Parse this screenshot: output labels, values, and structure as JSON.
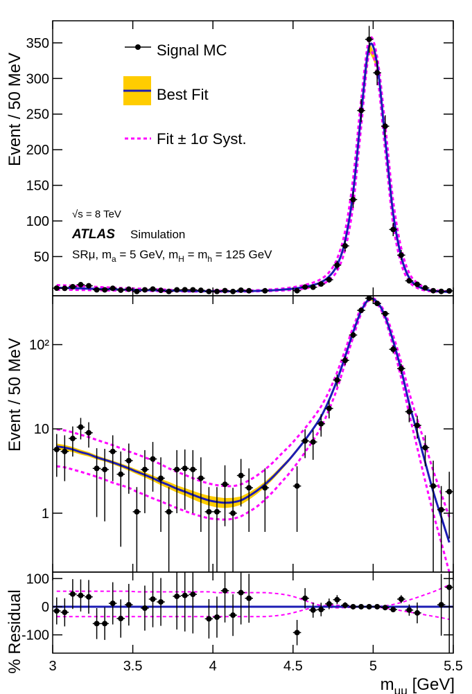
{
  "chart_data": [
    {
      "type": "errorbar",
      "log": false,
      "ylabel": "Event / 50 MeV",
      "ylim": [
        -5,
        381
      ],
      "yticks": [
        50,
        100,
        150,
        200,
        250,
        300,
        350
      ],
      "x": [
        3.025,
        3.075,
        3.125,
        3.175,
        3.225,
        3.275,
        3.325,
        3.375,
        3.425,
        3.475,
        3.525,
        3.575,
        3.625,
        3.675,
        3.725,
        3.775,
        3.825,
        3.875,
        3.925,
        3.975,
        4.025,
        4.075,
        4.125,
        4.175,
        4.225,
        4.275,
        4.325,
        4.375,
        4.425,
        4.475,
        4.525,
        4.575,
        4.625,
        4.675,
        4.725,
        4.775,
        4.825,
        4.875,
        4.925,
        4.975,
        5.025,
        5.075,
        5.125,
        5.175,
        5.225,
        5.275,
        5.325,
        5.375,
        5.425,
        5.475
      ],
      "xerr": 0.025,
      "series": [
        {
          "name": "Signal MC",
          "color": "#000000",
          "values": [
            5.7,
            5.4,
            7.7,
            10.5,
            9.0,
            3.4,
            3.3,
            5.4,
            2.9,
            4.2,
            1.04,
            3.3,
            4.4,
            2.6,
            1.04,
            3.3,
            3.4,
            3.3,
            2.6,
            1.04,
            1.04,
            2.2,
            1.0,
            2.8,
            2.0,
            null,
            2.0,
            null,
            null,
            null,
            2.1,
            7.2,
            7.0,
            11.5,
            17.5,
            38,
            65,
            130,
            255,
            355,
            308,
            233,
            88,
            52,
            16,
            11,
            6,
            2.1,
            1.1,
            1.8
          ],
          "errors": [
            3,
            3,
            3,
            3,
            3,
            2.5,
            2.5,
            3,
            2.5,
            2.5,
            1,
            2.3,
            2.6,
            2,
            1,
            2.3,
            2.3,
            2.3,
            2,
            1,
            1,
            1.5,
            1,
            1.6,
            1.4,
            null,
            1.4,
            null,
            null,
            null,
            1.5,
            2.7,
            2.7,
            3.4,
            4.2,
            6.2,
            8,
            11.4,
            16,
            18.8,
            17.5,
            15.3,
            9.4,
            7.2,
            4,
            3.3,
            2.4,
            2.1,
            1,
            1.3
          ]
        },
        {
          "name": "Best Fit",
          "color": "#1c1cb4",
          "band_color": "#ffcc00",
          "values": [
            6.2,
            6.0,
            5.7,
            5.3,
            5.0,
            4.6,
            4.3,
            4.0,
            3.7,
            3.4,
            3.1,
            2.85,
            2.6,
            2.35,
            2.15,
            1.95,
            1.8,
            1.65,
            1.52,
            1.42,
            1.36,
            1.33,
            1.35,
            1.42,
            1.6,
            1.85,
            2.2,
            2.7,
            3.4,
            4.3,
            5.6,
            7.4,
            10,
            14,
            22,
            38,
            72,
            140,
            250,
            345,
            320,
            215,
            110,
            50,
            20,
            9,
            4,
            1.8,
            0.9,
            0.45
          ],
          "lower": [
            5.7,
            5.55,
            5.3,
            4.95,
            4.7,
            4.35,
            4.1,
            3.8,
            3.5,
            3.2,
            2.9,
            2.65,
            2.4,
            2.15,
            1.95,
            1.76,
            1.61,
            1.46,
            1.33,
            1.23,
            1.17,
            1.15,
            1.18,
            1.26,
            1.44,
            1.69,
            2.03,
            2.52,
            3.2,
            4.1,
            5.35,
            7.1,
            9.6,
            13.5,
            21.3,
            37,
            70,
            137,
            245,
            338,
            314,
            211,
            108,
            49,
            19.6,
            8.8,
            3.9,
            1.76,
            0.88,
            0.44
          ],
          "upper": [
            6.7,
            6.45,
            6.1,
            5.65,
            5.3,
            4.85,
            4.5,
            4.2,
            3.9,
            3.6,
            3.3,
            3.05,
            2.8,
            2.55,
            2.35,
            2.14,
            1.99,
            1.84,
            1.71,
            1.61,
            1.55,
            1.51,
            1.52,
            1.58,
            1.76,
            2.01,
            2.37,
            2.88,
            3.6,
            4.5,
            5.85,
            7.7,
            10.4,
            14.5,
            22.7,
            39,
            74,
            143,
            255,
            352,
            326,
            219,
            112,
            51,
            20.4,
            9.2,
            4.1,
            1.84,
            0.92,
            0.46
          ]
        },
        {
          "name": "Fit ± 1σ Syst.",
          "color": "#ff00ff",
          "upper": [
            9.9,
            9.6,
            9.1,
            8.5,
            8.0,
            7.4,
            6.9,
            6.4,
            5.9,
            5.4,
            5.0,
            4.6,
            4.2,
            3.8,
            3.4,
            3.1,
            2.85,
            2.6,
            2.4,
            2.25,
            2.15,
            2.1,
            2.1,
            2.2,
            2.45,
            2.8,
            3.3,
            4.0,
            5.0,
            6.2,
            7.9,
            10.2,
            13.5,
            18.5,
            28,
            47,
            86,
            160,
            270,
            355,
            330,
            235,
            128,
            62,
            27,
            13,
            6.5,
            3.2,
            1.7,
            0.9
          ],
          "lower": [
            3.6,
            3.5,
            3.3,
            3.1,
            2.9,
            2.7,
            2.5,
            2.3,
            2.15,
            2.0,
            1.8,
            1.65,
            1.5,
            1.38,
            1.26,
            1.15,
            1.06,
            0.98,
            0.92,
            0.87,
            0.85,
            0.84,
            0.86,
            0.92,
            1.04,
            1.2,
            1.45,
            1.8,
            2.3,
            2.95,
            3.9,
            5.3,
            7.3,
            10.5,
            17,
            30,
            60,
            122,
            232,
            335,
            305,
            198,
            95,
            40,
            15,
            6,
            2.4,
            1.0,
            0.45,
            0.2
          ]
        }
      ],
      "annotations": {
        "energy": "√s = 8 TeV",
        "experiment": "ATLAS",
        "label": "Simulation",
        "selection": [
          "SRμ, m",
          {
            "text": "a",
            "sub": true
          },
          " = 5 GeV, m",
          {
            "text": "H",
            "sub": true
          },
          " = m",
          {
            "text": "h",
            "sub": true
          },
          " = 125 GeV"
        ]
      }
    },
    {
      "type": "errorbar",
      "log": true,
      "ylabel": "Event / 50 MeV",
      "ylim": [
        0.2,
        380
      ],
      "yticks": [
        1,
        10,
        {
          "value": 100,
          "label": "10²"
        }
      ]
    },
    {
      "type": "residual",
      "log": false,
      "ylabel": "% Residual",
      "ylim": [
        -165,
        123
      ],
      "yticks": [
        -100,
        0,
        100
      ],
      "xlim": [
        3,
        5.5
      ],
      "xticks": [
        3,
        3.5,
        4,
        4.5,
        5,
        5.5
      ],
      "xlabel": [
        "m",
        {
          "text": "μμ",
          "sub": true
        },
        " [GeV]"
      ],
      "fit": 0,
      "values": [
        -15,
        -20,
        45,
        40,
        35,
        -60,
        -60,
        12,
        -42,
        7,
        null,
        -5,
        27,
        17,
        null,
        37,
        40,
        44,
        null,
        -43,
        -37,
        57,
        -30,
        50,
        30,
        null,
        null,
        null,
        null,
        null,
        -92,
        30,
        -12,
        -10,
        10,
        25,
        5,
        0,
        0,
        0,
        0,
        -3,
        -10,
        27,
        -12,
        -22,
        null,
        null,
        7,
        69
      ],
      "errors": [
        48,
        50,
        53,
        57,
        60,
        55,
        58,
        75,
        68,
        74,
        null,
        80,
        100,
        85,
        null,
        118,
        128,
        139,
        null,
        70,
        73,
        113,
        74,
        113,
        87,
        null,
        null,
        null,
        null,
        null,
        45,
        36,
        27,
        24,
        19,
        16,
        11,
        8,
        6,
        5,
        5,
        7,
        9,
        14,
        20,
        37,
        null,
        null,
        110,
        290
      ],
      "syst_upper": [
        55,
        55,
        55,
        55,
        55,
        55,
        55,
        55,
        55,
        55,
        53,
        53,
        53,
        53,
        53,
        53,
        53,
        53,
        53,
        53,
        50,
        50,
        50,
        50,
        50,
        50,
        50,
        48,
        45,
        40,
        32,
        22,
        12,
        4,
        -2,
        -4,
        -3,
        -2,
        -1,
        0,
        1,
        3,
        8,
        15,
        24,
        33,
        43,
        53,
        65,
        78
      ],
      "syst_lower": [
        -35,
        -35,
        -35,
        -35,
        -35,
        -35,
        -35,
        -35,
        -35,
        -35,
        -35,
        -35,
        -35,
        -35,
        -35,
        -35,
        -35,
        -35,
        -35,
        -35,
        -35,
        -35,
        -35,
        -35,
        -35,
        -35,
        -35,
        -33,
        -30,
        -25,
        -18,
        -10,
        -3,
        2,
        5,
        5,
        3,
        1,
        0,
        -1,
        -2,
        -5,
        -9,
        -14,
        -19,
        -24,
        -29,
        -34,
        -39,
        -45
      ]
    }
  ]
}
